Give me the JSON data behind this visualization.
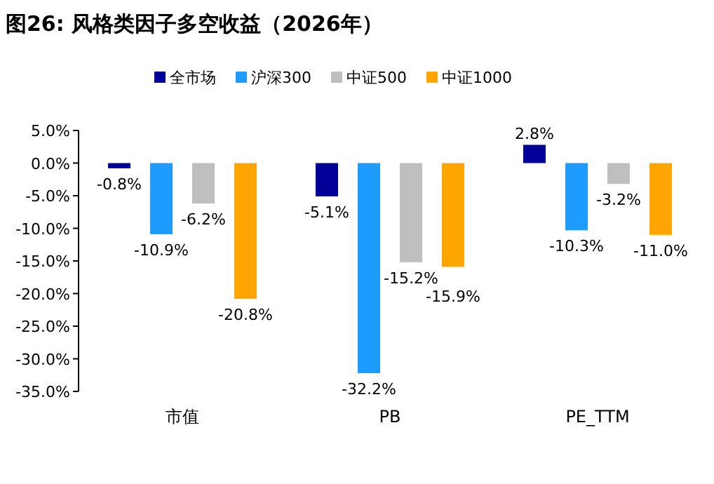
{
  "chart_data": {
    "type": "bar",
    "title": "图26:  风格类因子多空收益（2026年）",
    "categories": [
      "市值",
      "PB",
      "PE_TTM"
    ],
    "series": [
      {
        "name": "全市场",
        "color": "#000099",
        "values": [
          -0.8,
          -5.1,
          2.8
        ],
        "value_labels": [
          "-0.8%",
          "-5.1%",
          "2.8%"
        ]
      },
      {
        "name": "沪深300",
        "color": "#1e9bff",
        "values": [
          -10.9,
          -32.2,
          -10.3
        ],
        "value_labels": [
          "-10.9%",
          "-32.2%",
          "-10.3%"
        ]
      },
      {
        "name": "中证500",
        "color": "#bfbfbf",
        "values": [
          -6.2,
          -15.2,
          -3.2
        ],
        "value_labels": [
          "-6.2%",
          "-15.2%",
          "-3.2%"
        ]
      },
      {
        "name": "中证1000",
        "color": "#ffa500",
        "values": [
          -20.8,
          -15.9,
          -11.0
        ],
        "value_labels": [
          "-20.8%",
          "-15.9%",
          "-11.0%"
        ]
      }
    ],
    "ylim": [
      -35,
      5
    ],
    "yticks": [
      {
        "value": 5,
        "label": "5.0%"
      },
      {
        "value": 0,
        "label": "0.0%"
      },
      {
        "value": -5,
        "label": "-5.0%"
      },
      {
        "value": -10,
        "label": "-10.0%"
      },
      {
        "value": -15,
        "label": "-15.0%"
      },
      {
        "value": -20,
        "label": "-20.0%"
      },
      {
        "value": -25,
        "label": "-25.0%"
      },
      {
        "value": -30,
        "label": "-30.0%"
      },
      {
        "value": -35,
        "label": "-35.0%"
      }
    ],
    "legend": "top",
    "grid": false
  }
}
